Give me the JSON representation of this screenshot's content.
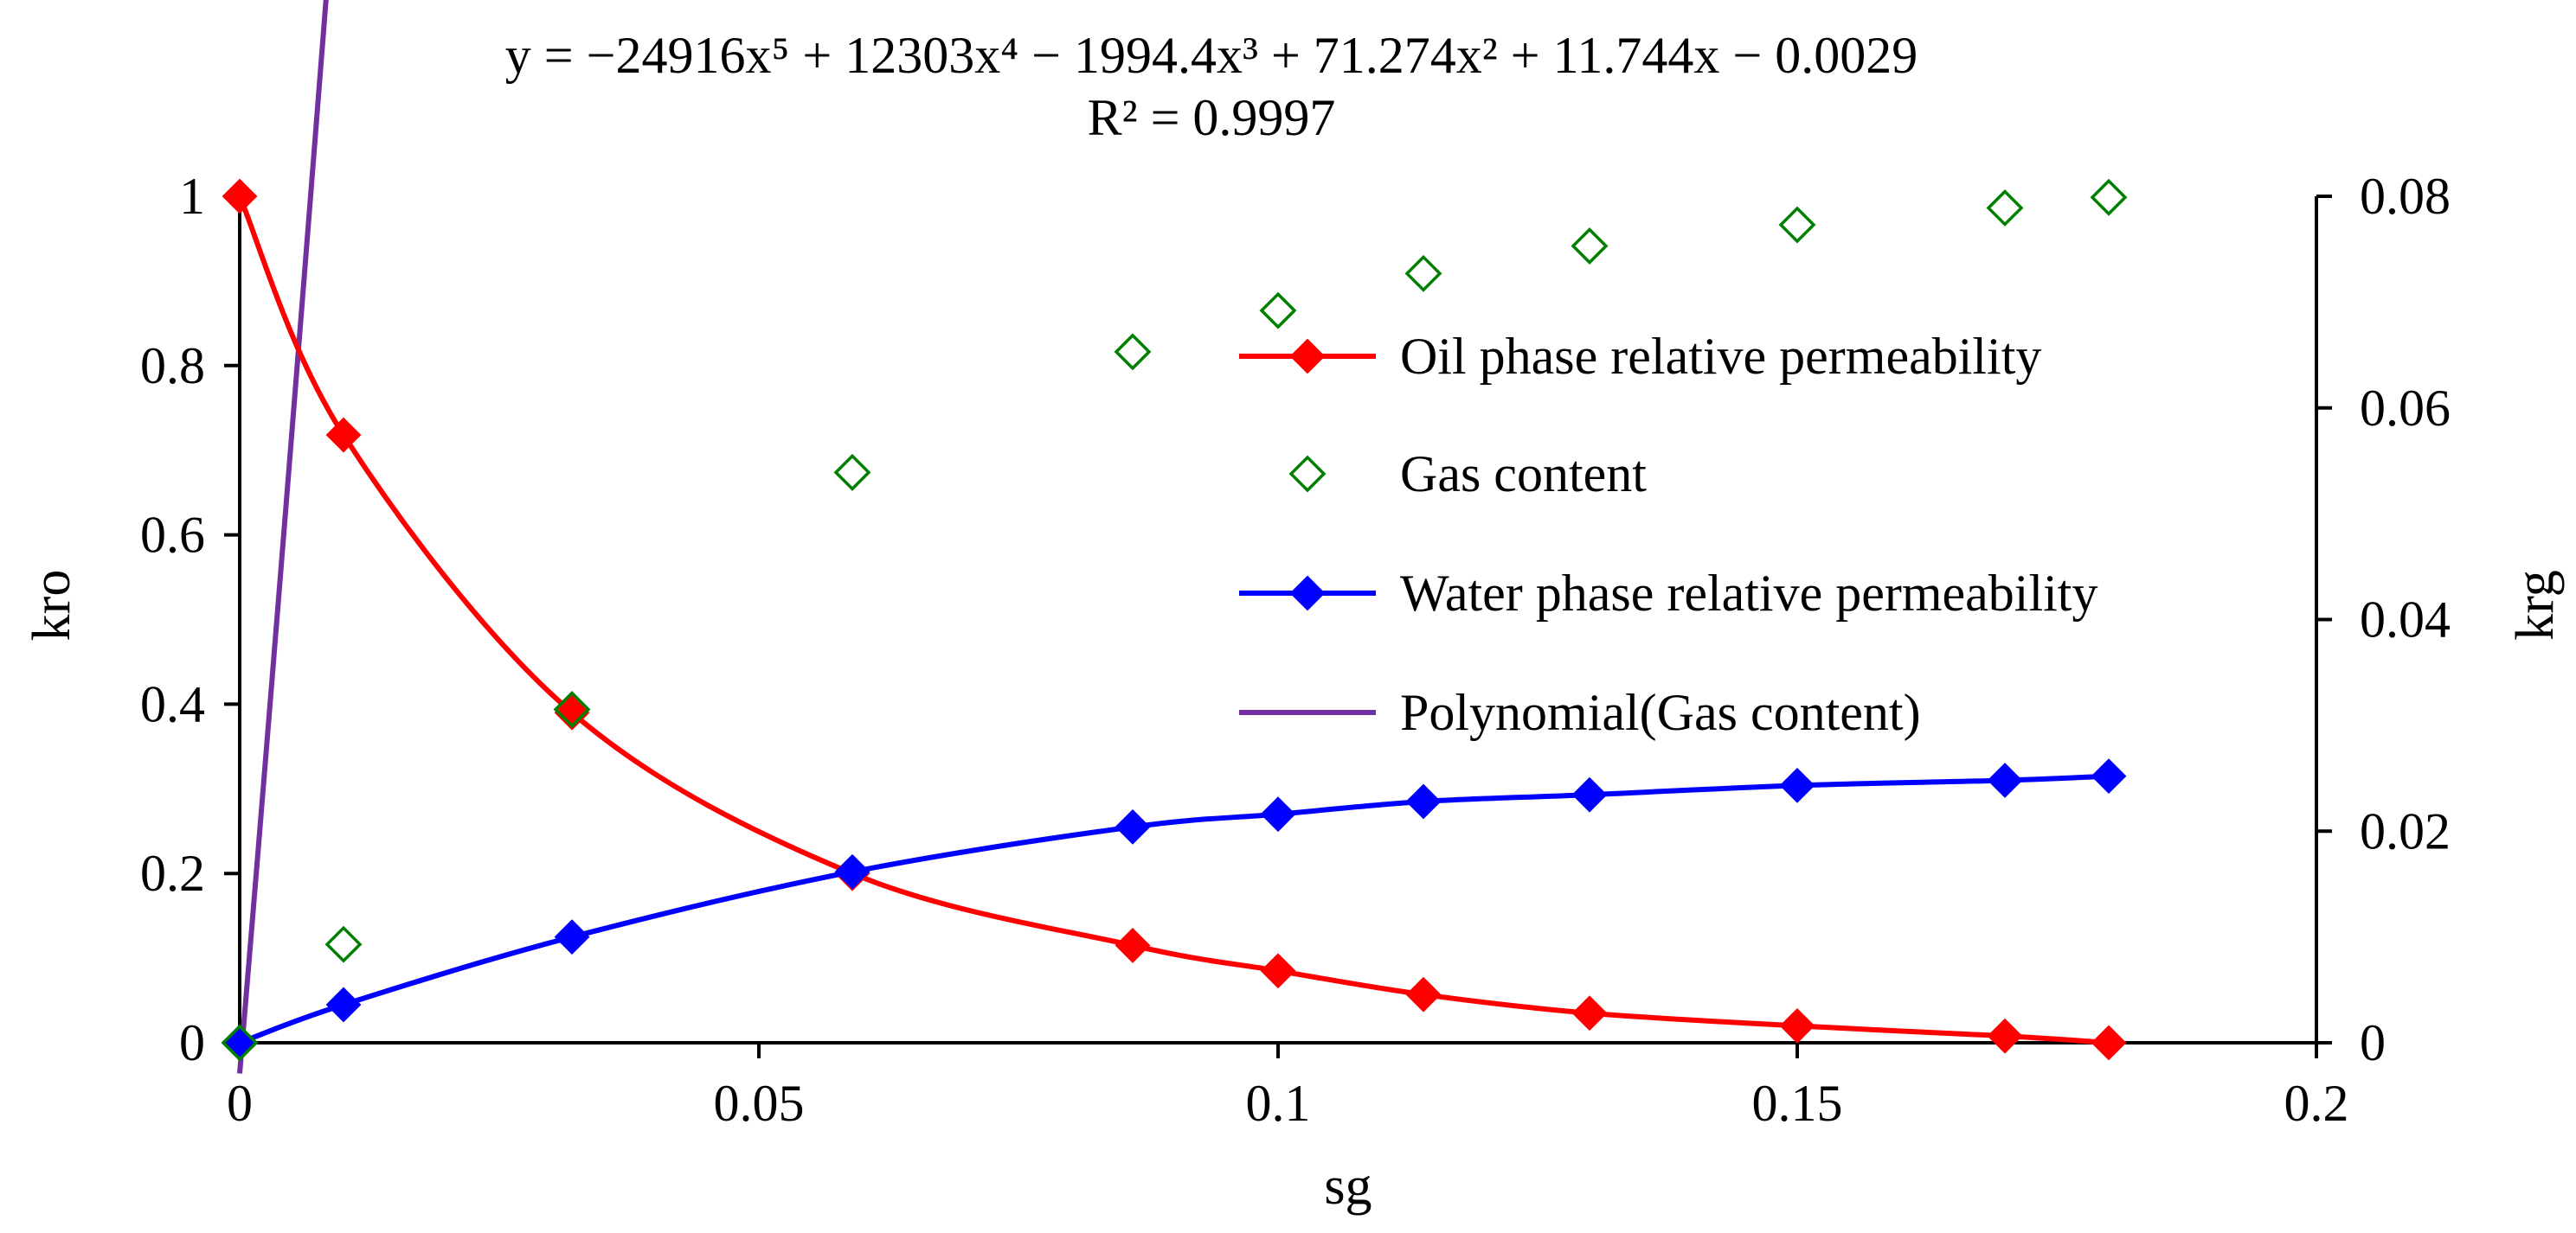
{
  "chart_data": {
    "type": "line",
    "title_line1": "y = −24916x⁵ + 12303x⁴ − 1994.4x³ + 71.274x² + 11.744x − 0.0029",
    "title_line2": "R² = 0.9997",
    "xlabel": "sg",
    "ylabel_left": "kro",
    "ylabel_right": "krg",
    "xlim": [
      0,
      0.2
    ],
    "ylim_left": [
      0,
      1
    ],
    "ylim_right": [
      0,
      0.08
    ],
    "x_ticks": [
      {
        "value": 0,
        "label": "0"
      },
      {
        "value": 0.05,
        "label": "0.05"
      },
      {
        "value": 0.1,
        "label": "0.1"
      },
      {
        "value": 0.15,
        "label": "0.15"
      },
      {
        "value": 0.2,
        "label": "0.2"
      }
    ],
    "y_left_ticks": [
      {
        "value": 0,
        "label": "0"
      },
      {
        "value": 0.2,
        "label": "0.2"
      },
      {
        "value": 0.4,
        "label": "0.4"
      },
      {
        "value": 0.6,
        "label": "0.6"
      },
      {
        "value": 0.8,
        "label": "0.8"
      },
      {
        "value": 1,
        "label": "1"
      }
    ],
    "y_right_ticks": [
      {
        "value": 0,
        "label": "0"
      },
      {
        "value": 0.02,
        "label": "0.02"
      },
      {
        "value": 0.04,
        "label": "0.04"
      },
      {
        "value": 0.06,
        "label": "0.06"
      },
      {
        "value": 0.08,
        "label": "0.08"
      }
    ],
    "series": [
      {
        "name": "Oil phase relative permeability",
        "axis": "left",
        "color": "#ff0000",
        "marker": "filled-diamond",
        "line": true,
        "x": [
          0,
          0.01,
          0.032,
          0.059,
          0.086,
          0.1,
          0.114,
          0.13,
          0.15,
          0.17,
          0.18
        ],
        "y": [
          1.0,
          0.718,
          0.39,
          0.2,
          0.115,
          0.085,
          0.057,
          0.035,
          0.02,
          0.008,
          0.0
        ]
      },
      {
        "name": "Gas content",
        "axis": "right",
        "color": "#008000",
        "marker": "open-diamond",
        "line": false,
        "x": [
          0,
          0.01,
          0.032,
          0.059,
          0.086,
          0.1,
          0.114,
          0.13,
          0.15,
          0.17,
          0.18
        ],
        "y": [
          0.0,
          0.0093,
          0.0315,
          0.0539,
          0.0653,
          0.0692,
          0.0727,
          0.0753,
          0.0773,
          0.0789,
          0.0799
        ]
      },
      {
        "name": "Water phase relative permeability",
        "axis": "left",
        "color": "#0000ff",
        "marker": "filled-diamond",
        "line": true,
        "x": [
          0,
          0.01,
          0.032,
          0.059,
          0.086,
          0.1,
          0.114,
          0.13,
          0.15,
          0.17,
          0.18
        ],
        "y": [
          0.0,
          0.045,
          0.125,
          0.202,
          0.255,
          0.27,
          0.285,
          0.293,
          0.304,
          0.31,
          0.315
        ]
      },
      {
        "name": "Polynomial(Gas content)",
        "axis": "right",
        "color": "#7030a0",
        "marker": "none",
        "line": true,
        "fit": "polynomial",
        "coefficients": [
          -24916,
          12303,
          -1994.4,
          71.274,
          11.744,
          -0.0029
        ],
        "x_range": [
          0,
          0.18
        ]
      }
    ]
  }
}
